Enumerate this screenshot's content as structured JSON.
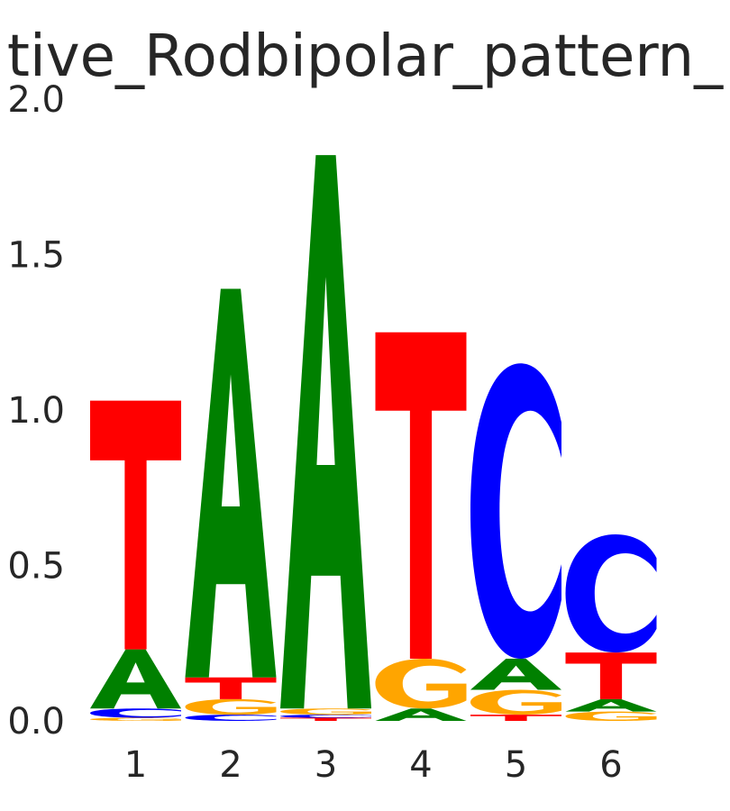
{
  "chart_data": {
    "type": "sequence-logo",
    "title": "tive_Rodbipolar_pattern_",
    "xlabel": "",
    "ylabel": "",
    "ylim": [
      0,
      2.0
    ],
    "yticks": [
      "0.0",
      "0.5",
      "1.0",
      "1.5",
      "2.0"
    ],
    "grid": false,
    "colors": {
      "A": "#008000",
      "C": "#0000ff",
      "G": "#ffa500",
      "T": "#ff0000"
    },
    "positions": [
      {
        "label": "1",
        "letters": [
          {
            "base": "G",
            "height": 0.01
          },
          {
            "base": "C",
            "height": 0.03
          },
          {
            "base": "A",
            "height": 0.19
          },
          {
            "base": "T",
            "height": 0.8
          }
        ]
      },
      {
        "label": "2",
        "letters": [
          {
            "base": "C",
            "height": 0.02
          },
          {
            "base": "G",
            "height": 0.05
          },
          {
            "base": "T",
            "height": 0.07
          },
          {
            "base": "A",
            "height": 1.25
          }
        ]
      },
      {
        "label": "3",
        "letters": [
          {
            "base": "T",
            "height": 0.01
          },
          {
            "base": "C",
            "height": 0.01
          },
          {
            "base": "G",
            "height": 0.02
          },
          {
            "base": "A",
            "height": 1.78
          }
        ]
      },
      {
        "label": "4",
        "letters": [
          {
            "base": "A",
            "height": 0.04
          },
          {
            "base": "G",
            "height": 0.16
          },
          {
            "base": "T",
            "height": 1.05
          }
        ]
      },
      {
        "label": "5",
        "letters": [
          {
            "base": "T",
            "height": 0.02
          },
          {
            "base": "G",
            "height": 0.08
          },
          {
            "base": "A",
            "height": 0.1
          },
          {
            "base": "C",
            "height": 0.95
          }
        ]
      },
      {
        "label": "6",
        "letters": [
          {
            "base": "G",
            "height": 0.03
          },
          {
            "base": "A",
            "height": 0.04
          },
          {
            "base": "T",
            "height": 0.15
          },
          {
            "base": "C",
            "height": 0.38
          }
        ]
      }
    ]
  }
}
